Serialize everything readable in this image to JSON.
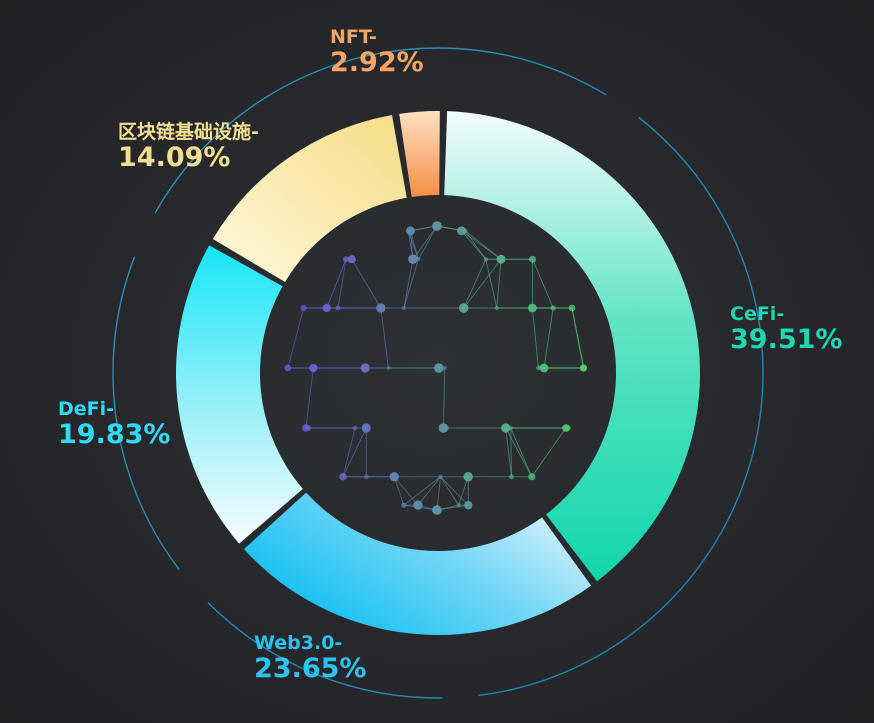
{
  "chart_data": {
    "type": "pie",
    "style": "donut",
    "categories": [
      "CeFi-",
      "Web3.0-",
      "DeFi-",
      "区块链基础设施-",
      "NFT-"
    ],
    "values": [
      39.51,
      23.65,
      19.83,
      14.09,
      2.92
    ],
    "value_labels": [
      "39.51%",
      "23.65%",
      "19.83%",
      "14.09%",
      "2.92%"
    ],
    "colors": [
      "#12d6ab",
      "#1cc3f4",
      "#1ce3f7",
      "#f4dd8a",
      "#f6a35a"
    ],
    "label_colors": [
      "#1fd8b1",
      "#2cc2f2",
      "#2fdaf4",
      "#f2df90",
      "#f5a565"
    ],
    "center_graphic": "network-globe"
  }
}
